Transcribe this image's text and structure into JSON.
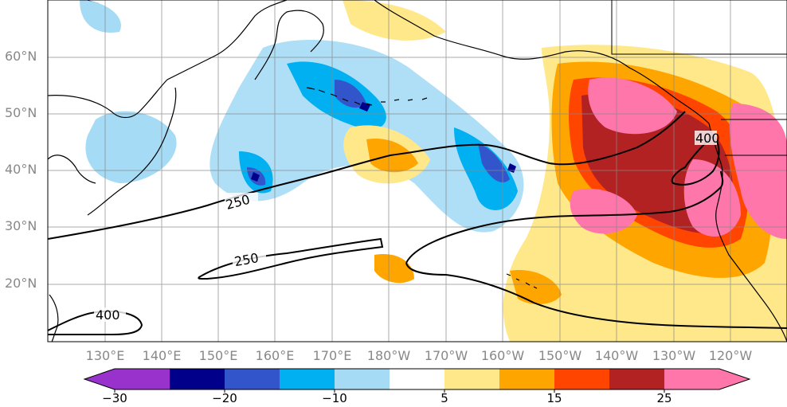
{
  "map": {
    "lat_labels": [
      "60°N",
      "50°N",
      "40°N",
      "30°N",
      "20°N"
    ],
    "lon_labels": [
      "130°E",
      "140°E",
      "150°E",
      "160°E",
      "170°E",
      "180°W",
      "170°W",
      "160°W",
      "150°W",
      "140°W",
      "130°W",
      "120°W"
    ],
    "contour_labels": [
      "250",
      "250",
      "400",
      "400"
    ],
    "colors": {
      "c_m30": "#9932cc",
      "c_m25": "#00008b",
      "c_m20": "#3355cc",
      "c_m15": "#00b0f0",
      "c_m10": "#a6dbf5",
      "c_5": "#ffe88a",
      "c_10": "#ffa500",
      "c_15": "#ff4500",
      "c_20": "#b22222",
      "c_25": "#ff77aa"
    }
  },
  "colorbar": {
    "tick_labels": [
      "−30",
      "−20",
      "−10",
      "5",
      "15",
      "25"
    ],
    "colors": [
      "#9932cc",
      "#00008b",
      "#3355cc",
      "#00b0f0",
      "#a6dbf5",
      "#ffffff",
      "#ffe88a",
      "#ffa500",
      "#ff4500",
      "#b22222",
      "#ff77aa"
    ]
  }
}
